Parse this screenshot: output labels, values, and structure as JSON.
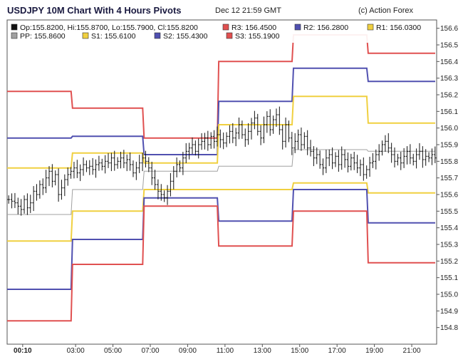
{
  "header": {
    "title": "USDJPY 10M Chart With 4 Hours Pivots",
    "date": "Dec 12 21:59 GMT",
    "copyright": "(c) Action Forex"
  },
  "chart_data": {
    "type": "line",
    "title": "USDJPY 10M Chart With 4 Hours Pivots",
    "ylim": [
      154.7,
      156.65
    ],
    "y_ticks": [
      154.8,
      154.9,
      155.0,
      155.1,
      155.2,
      155.3,
      155.4,
      155.5,
      155.6,
      155.7,
      155.8,
      155.9,
      156.0,
      156.1,
      156.2,
      156.3,
      156.4,
      156.5,
      156.6
    ],
    "x_ticks": [
      {
        "label": "00:10",
        "bar": 5,
        "bold": true
      },
      {
        "label": "03:00",
        "bar": 22
      },
      {
        "label": "05:00",
        "bar": 34
      },
      {
        "label": "07:00",
        "bar": 46
      },
      {
        "label": "09:00",
        "bar": 58
      },
      {
        "label": "11:00",
        "bar": 70
      },
      {
        "label": "13:00",
        "bar": 82
      },
      {
        "label": "15:00",
        "bar": 94
      },
      {
        "label": "17:00",
        "bar": 106
      },
      {
        "label": "19:00",
        "bar": 118
      },
      {
        "label": "21:00",
        "bar": 130
      }
    ],
    "x_range": [
      0,
      138
    ],
    "legend": [
      {
        "label": "Op:155.8200, Hi:155.8700, Lo:155.7900, Cl:155.8200",
        "color": "#111111"
      },
      {
        "label": "R3: 156.4500",
        "color": "#e05050"
      },
      {
        "label": "R2: 156.2800",
        "color": "#5050b0"
      },
      {
        "label": "R1: 156.0300",
        "color": "#f0d040"
      },
      {
        "label": "PP: 155.8600",
        "color": "#a0a0a0"
      },
      {
        "label": "S1: 155.6100",
        "color": "#f0d040"
      },
      {
        "label": "S2: 155.4300",
        "color": "#5050b0"
      },
      {
        "label": "S3: 155.1900",
        "color": "#e05050"
      }
    ],
    "pivot_segments": {
      "bars": [
        [
          0,
          20
        ],
        [
          21,
          43
        ],
        [
          44,
          67
        ],
        [
          68,
          91
        ],
        [
          92,
          115
        ],
        [
          116,
          138
        ]
      ],
      "series": [
        {
          "name": "R3",
          "color": "#e05050",
          "values": [
            156.22,
            156.12,
            155.94,
            156.4,
            156.56,
            156.45
          ]
        },
        {
          "name": "R2",
          "color": "#5050b0",
          "values": [
            155.94,
            155.95,
            155.84,
            156.16,
            156.36,
            156.28
          ]
        },
        {
          "name": "R1",
          "color": "#f0d040",
          "values": [
            155.76,
            155.85,
            155.79,
            156.02,
            156.19,
            156.03
          ]
        },
        {
          "name": "PP",
          "color": "#a0a0a0",
          "values": [
            155.48,
            155.63,
            155.74,
            155.77,
            155.87,
            155.86
          ]
        },
        {
          "name": "S1",
          "color": "#f0d040",
          "values": [
            155.32,
            155.5,
            155.63,
            155.63,
            155.67,
            155.61
          ]
        },
        {
          "name": "S2",
          "color": "#5050b0",
          "values": [
            155.03,
            155.33,
            155.58,
            155.44,
            155.63,
            155.43
          ]
        },
        {
          "name": "S3",
          "color": "#e05050",
          "values": [
            154.84,
            155.18,
            155.53,
            155.29,
            155.5,
            155.19
          ]
        }
      ]
    },
    "price_closes": [
      155.57,
      155.56,
      155.55,
      155.53,
      155.51,
      155.57,
      155.52,
      155.55,
      155.62,
      155.6,
      155.66,
      155.64,
      155.7,
      155.74,
      155.68,
      155.72,
      155.6,
      155.64,
      155.69,
      155.72,
      155.74,
      155.76,
      155.73,
      155.75,
      155.78,
      155.76,
      155.77,
      155.75,
      155.78,
      155.79,
      155.77,
      155.8,
      155.79,
      155.82,
      155.78,
      155.8,
      155.82,
      155.79,
      155.81,
      155.78,
      155.73,
      155.76,
      155.79,
      155.82,
      155.8,
      155.76,
      155.7,
      155.66,
      155.62,
      155.6,
      155.58,
      155.62,
      155.68,
      155.74,
      155.78,
      155.76,
      155.82,
      155.86,
      155.88,
      155.9,
      155.86,
      155.9,
      155.92,
      155.94,
      155.9,
      155.95,
      155.92,
      155.96,
      155.93,
      155.91,
      155.95,
      155.98,
      155.94,
      155.97,
      156.02,
      155.96,
      155.93,
      155.98,
      156.03,
      156.06,
      155.98,
      155.94,
      156.02,
      156.07,
      155.99,
      156.05,
      156.08,
      155.99,
      155.92,
      156.02,
      155.94,
      155.88,
      155.92,
      155.96,
      155.9,
      155.95,
      155.88,
      155.86,
      155.82,
      155.84,
      155.78,
      155.76,
      155.82,
      155.84,
      155.79,
      155.83,
      155.78,
      155.84,
      155.81,
      155.77,
      155.82,
      155.79,
      155.76,
      155.78,
      155.72,
      155.75,
      155.79,
      155.8,
      155.84,
      155.86,
      155.9,
      155.92,
      155.88,
      155.84,
      155.8,
      155.82,
      155.79,
      155.83,
      155.86,
      155.82,
      155.8,
      155.84,
      155.86,
      155.81,
      155.83,
      155.82,
      155.84,
      155.82
    ]
  }
}
